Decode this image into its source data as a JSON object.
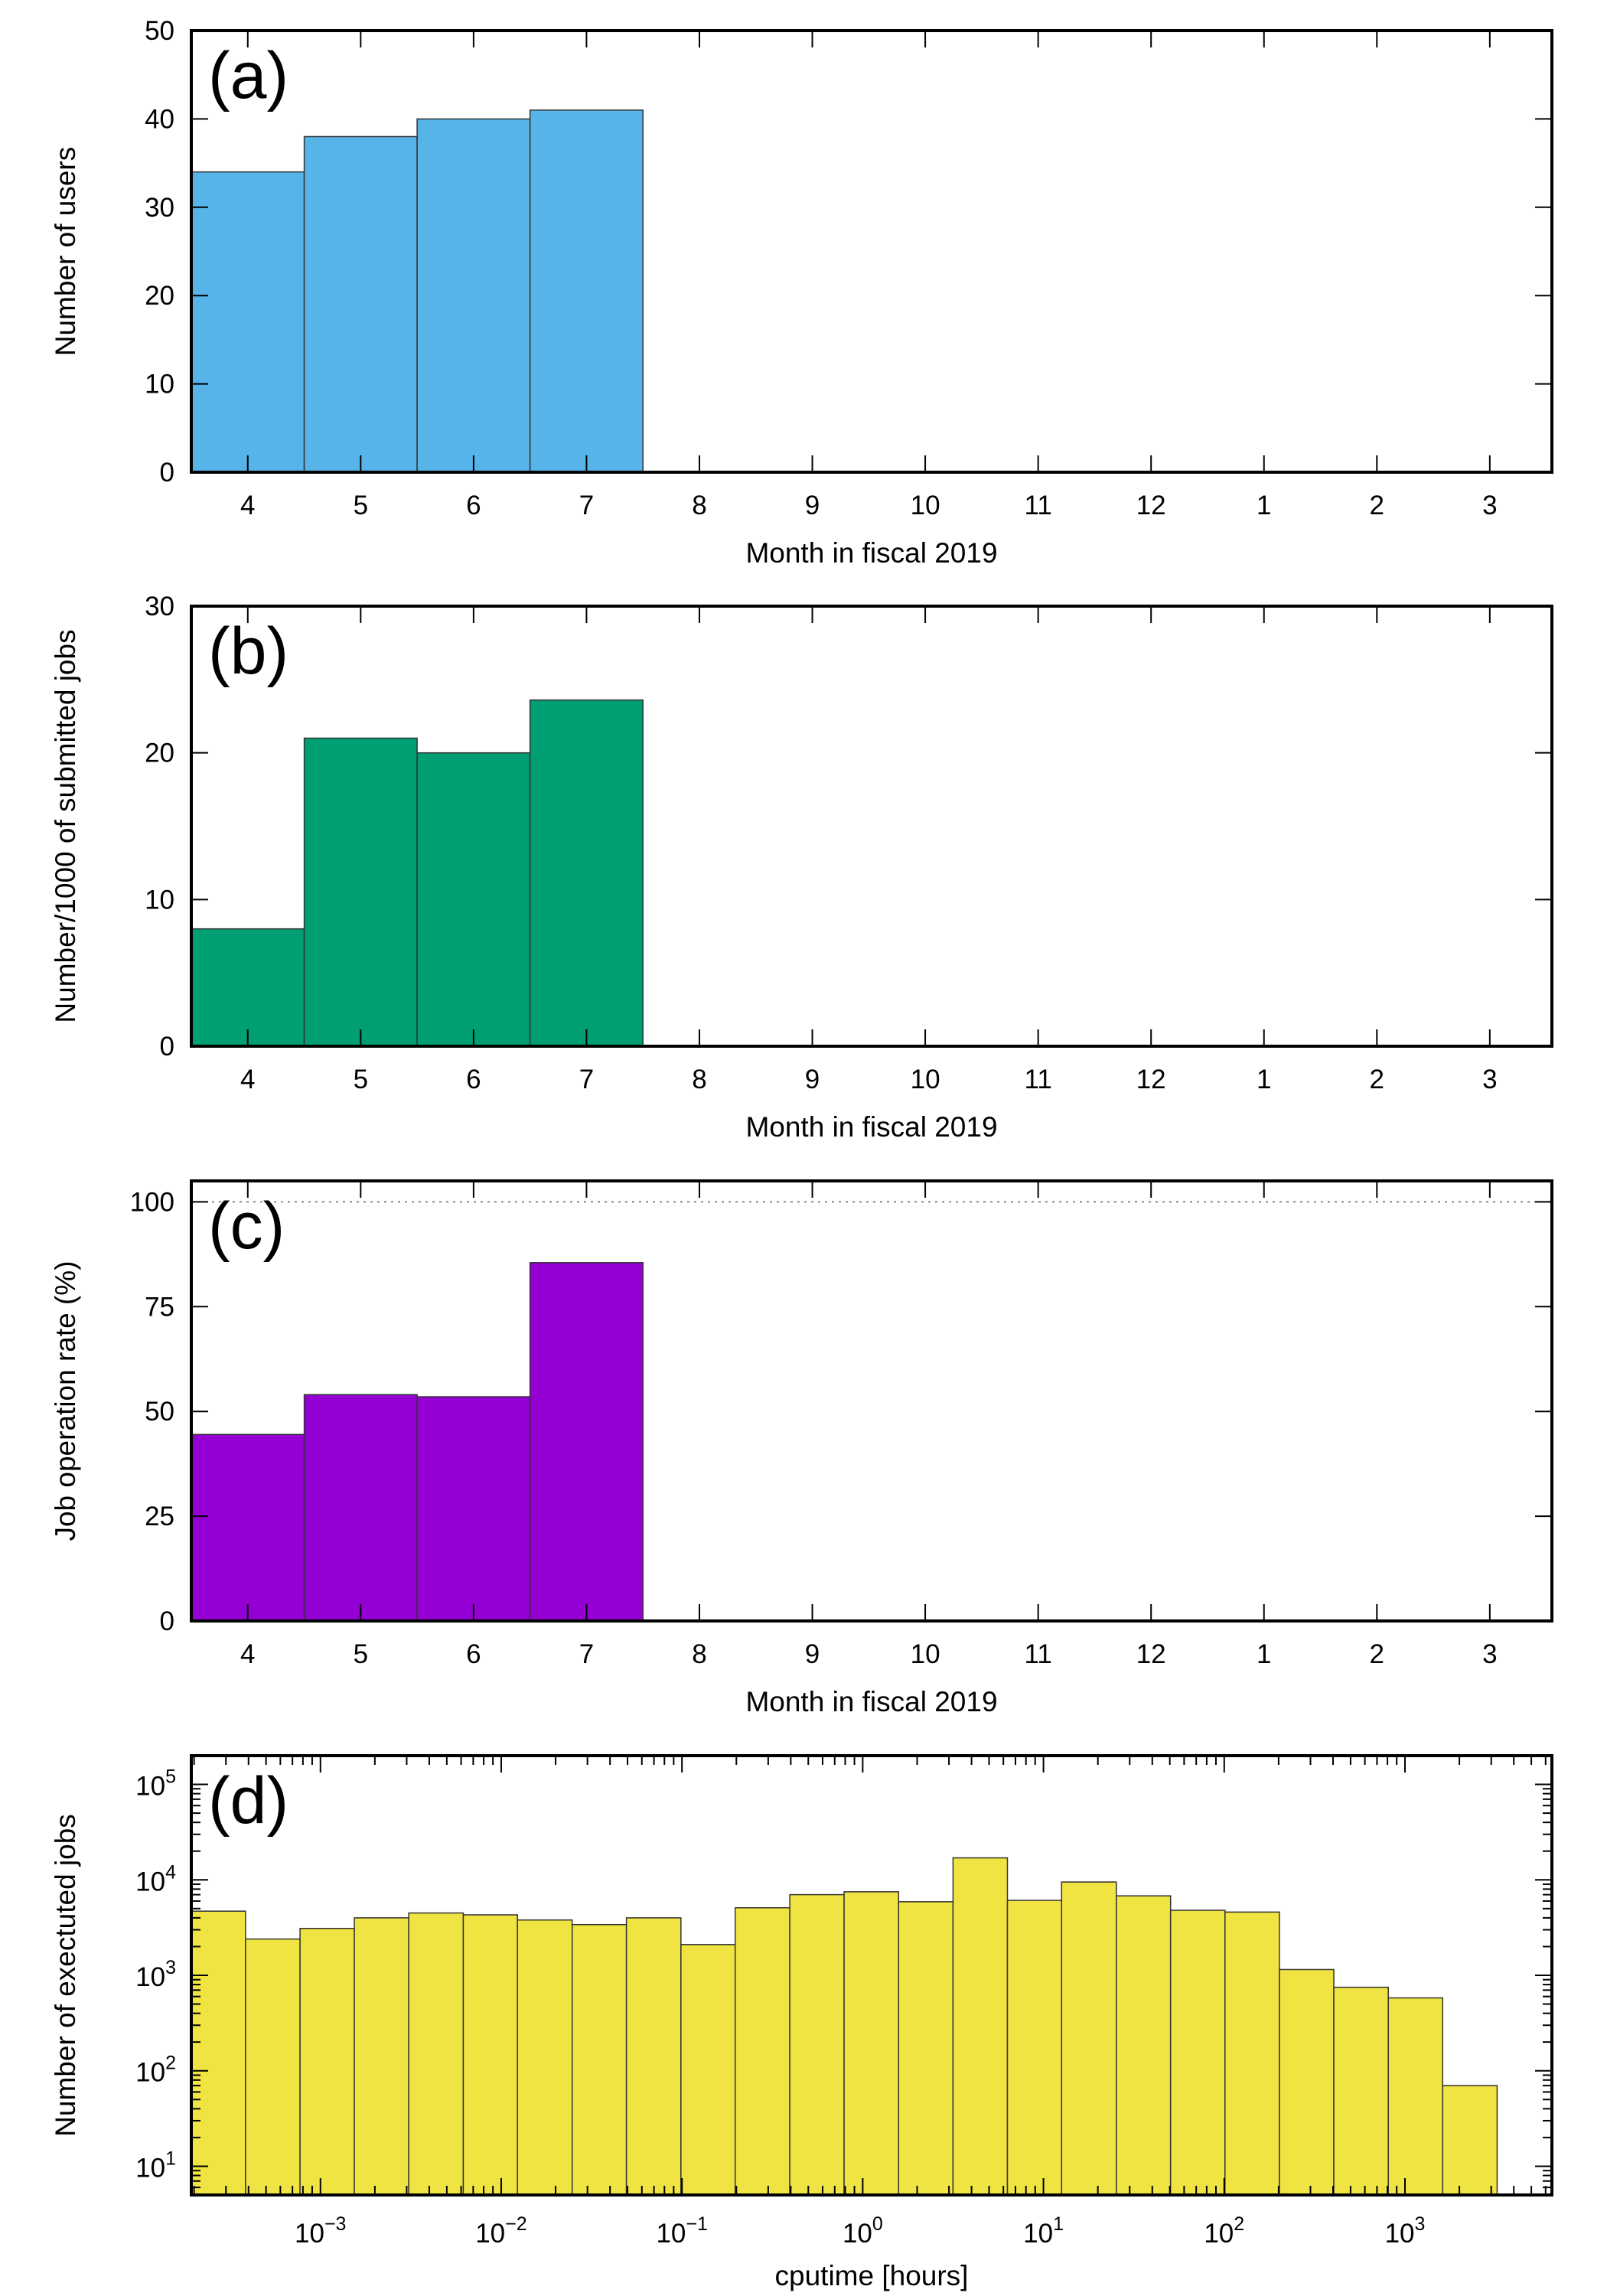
{
  "chart_data": [
    {
      "type": "bar",
      "panel_tag": "(a)",
      "categories": [
        "4",
        "5",
        "6",
        "7",
        "8",
        "9",
        "10",
        "11",
        "12",
        "1",
        "2",
        "3"
      ],
      "values": [
        34,
        38,
        40,
        41,
        null,
        null,
        null,
        null,
        null,
        null,
        null,
        null
      ],
      "xlabel": "Month in fiscal 2019",
      "ylabel": "Number of users",
      "ylim": [
        0,
        50
      ],
      "yticks": [
        0,
        10,
        20,
        30,
        40,
        50
      ],
      "color": "#56b4e9"
    },
    {
      "type": "bar",
      "panel_tag": "(b)",
      "categories": [
        "4",
        "5",
        "6",
        "7",
        "8",
        "9",
        "10",
        "11",
        "12",
        "1",
        "2",
        "3"
      ],
      "values": [
        8.0,
        21.0,
        20.0,
        23.6,
        null,
        null,
        null,
        null,
        null,
        null,
        null,
        null
      ],
      "xlabel": "Month in fiscal 2019",
      "ylabel": "Number/1000 of submitted jobs",
      "ylim": [
        0,
        30
      ],
      "yticks": [
        0,
        10,
        20,
        30
      ],
      "color": "#009e73"
    },
    {
      "type": "bar",
      "panel_tag": "(c)",
      "categories": [
        "4",
        "5",
        "6",
        "7",
        "8",
        "9",
        "10",
        "11",
        "12",
        "1",
        "2",
        "3"
      ],
      "values": [
        44.5,
        54,
        53.5,
        85.5,
        null,
        null,
        null,
        null,
        null,
        null,
        null,
        null
      ],
      "xlabel": "Month in fiscal 2019",
      "ylabel": "Job operation rate (%)",
      "ylim": [
        0,
        105
      ],
      "yticks": [
        0,
        25,
        50,
        75,
        100
      ],
      "reference_line": 100,
      "color": "#9400d3"
    },
    {
      "type": "bar",
      "panel_tag": "(d)",
      "x_scale": "log",
      "y_scale": "log",
      "bin_edges": [
        0.000193,
        0.000385,
        0.000771,
        0.00154,
        0.00308,
        0.00617,
        0.0123,
        0.0247,
        0.0493,
        0.0987,
        0.197,
        0.395,
        0.789,
        1.58,
        3.16,
        6.32,
        12.6,
        25.3,
        50.5,
        101,
        202,
        404,
        809,
        1617,
        3235
      ],
      "values": [
        4700,
        2400,
        3100,
        4000,
        4500,
        4300,
        3800,
        3400,
        4000,
        2100,
        5100,
        7000,
        7500,
        5900,
        17000,
        6100,
        9500,
        6800,
        4800,
        4600,
        1150,
        750,
        580,
        70
      ],
      "xlabel": "cputime [hours]",
      "ylabel": "Number of exectuted jobs",
      "xlim": [
        0.000193,
        6500
      ],
      "ylim": [
        5,
        200000
      ],
      "xtick_labels": [
        {
          "base": "10",
          "exp": "−3",
          "value": 0.001
        },
        {
          "base": "10",
          "exp": "−2",
          "value": 0.01
        },
        {
          "base": "10",
          "exp": "−1",
          "value": 0.1
        },
        {
          "base": "10",
          "exp": "0",
          "value": 1
        },
        {
          "base": "10",
          "exp": "1",
          "value": 10
        },
        {
          "base": "10",
          "exp": "2",
          "value": 100
        },
        {
          "base": "10",
          "exp": "3",
          "value": 1000
        }
      ],
      "ytick_labels": [
        {
          "base": "10",
          "exp": "1",
          "value": 10
        },
        {
          "base": "10",
          "exp": "2",
          "value": 100
        },
        {
          "base": "10",
          "exp": "3",
          "value": 1000
        },
        {
          "base": "10",
          "exp": "4",
          "value": 10000
        },
        {
          "base": "10",
          "exp": "5",
          "value": 100000
        }
      ],
      "color": "#f0e442"
    }
  ]
}
